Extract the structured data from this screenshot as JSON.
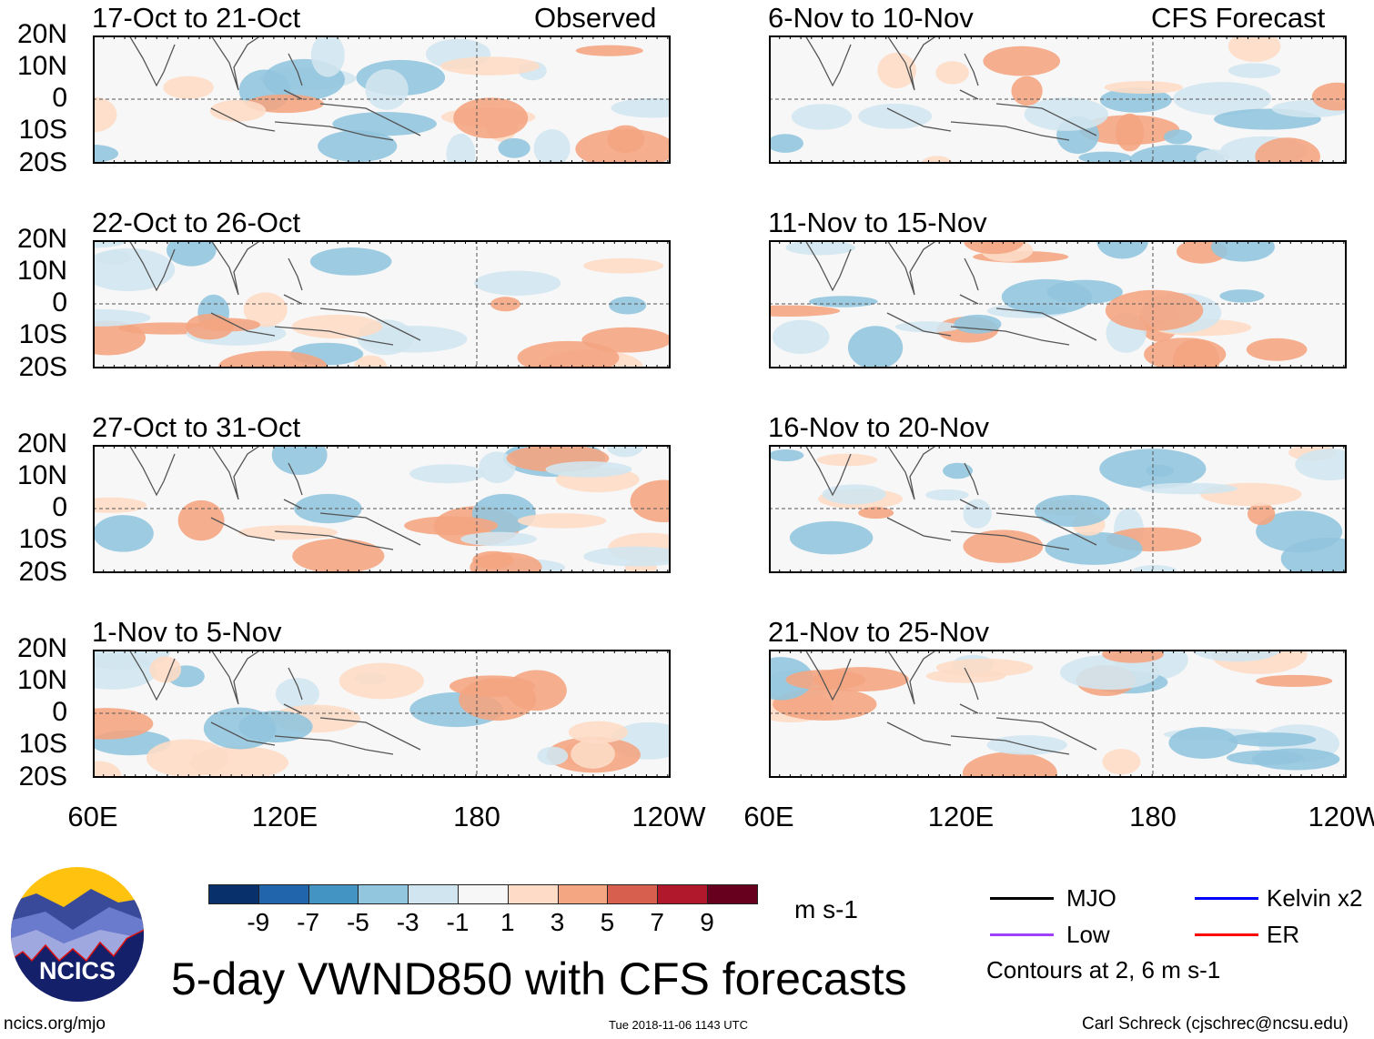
{
  "figure": {
    "title": "5-day VWND850 with CFS forecasts",
    "left_header": "Observed",
    "right_header": "CFS Forecast",
    "lat_labels": [
      "20N",
      "10N",
      "0",
      "10S",
      "20S"
    ],
    "lon_labels": [
      "60E",
      "120E",
      "180",
      "120W"
    ],
    "left_panels": [
      "17-Oct to 21-Oct",
      "22-Oct to 26-Oct",
      "27-Oct to 31-Oct",
      "1-Nov to 5-Nov"
    ],
    "right_panels": [
      "6-Nov to 10-Nov",
      "11-Nov to 15-Nov",
      "16-Nov to 20-Nov",
      "21-Nov to 25-Nov"
    ]
  },
  "colorbar": {
    "units": "m s-1",
    "labels": [
      "-9",
      "-7",
      "-5",
      "-3",
      "-1",
      "1",
      "3",
      "5",
      "7",
      "9"
    ],
    "colors": [
      "#08306b",
      "#2166ac",
      "#4393c3",
      "#92c5de",
      "#d1e5f0",
      "#f7f7f7",
      "#fddbc7",
      "#f4a582",
      "#d6604d",
      "#b2182b",
      "#67001f"
    ]
  },
  "legend": {
    "items": [
      {
        "label": "MJO",
        "color": "#000000"
      },
      {
        "label": "Kelvin x2",
        "color": "#0000ff"
      },
      {
        "label": "Low",
        "color": "#a040ff"
      },
      {
        "label": "ER",
        "color": "#ff0000"
      }
    ],
    "contours_note": "Contours at 2, 6 m s-1"
  },
  "footer": {
    "logo_text": "NCICS",
    "url": "ncics.org/mjo",
    "timestamp": "Tue 2018-11-06 1143 UTC",
    "credit": "Carl Schreck (cjschrec@ncsu.edu)"
  }
}
